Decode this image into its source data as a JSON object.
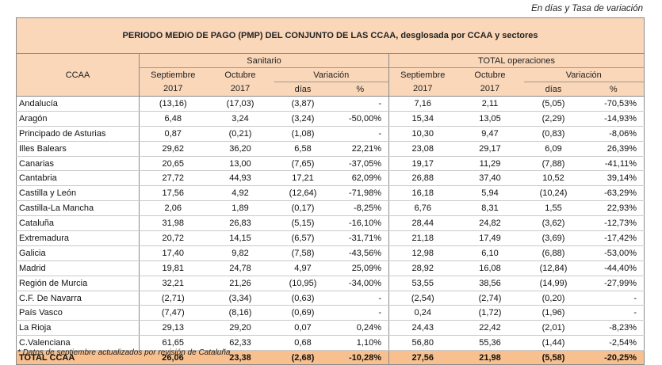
{
  "top_note": "En días y Tasa de variación",
  "title": "PERIODO MEDIO DE PAGO (PMP) DEL CONJUNTO DE LAS CCAA, desglosada por CCAA y sectores",
  "header": {
    "ccaa": "CCAA",
    "group_sanitario": "Sanitario",
    "group_total": "TOTAL operaciones",
    "sept_line1": "Septiembre",
    "sept_line2": "2017",
    "oct_line1": "Octubre",
    "oct_line2": "2017",
    "variacion": "Variación",
    "dias": "días",
    "pct": "%"
  },
  "rows": [
    {
      "name": "Andalucía",
      "s_sep": "(13,16)",
      "s_oct": "(17,03)",
      "s_dias": "(3,87)",
      "s_pct": "-",
      "t_sep": "7,16",
      "t_oct": "2,11",
      "t_dias": "(5,05)",
      "t_pct": "-70,53%"
    },
    {
      "name": "Aragón",
      "s_sep": "6,48",
      "s_oct": "3,24",
      "s_dias": "(3,24)",
      "s_pct": "-50,00%",
      "t_sep": "15,34",
      "t_oct": "13,05",
      "t_dias": "(2,29)",
      "t_pct": "-14,93%"
    },
    {
      "name": "Principado de Asturias",
      "s_sep": "0,87",
      "s_oct": "(0,21)",
      "s_dias": "(1,08)",
      "s_pct": "-",
      "t_sep": "10,30",
      "t_oct": "9,47",
      "t_dias": "(0,83)",
      "t_pct": "-8,06%"
    },
    {
      "name": "Illes Balears",
      "s_sep": "29,62",
      "s_oct": "36,20",
      "s_dias": "6,58",
      "s_pct": "22,21%",
      "t_sep": "23,08",
      "t_oct": "29,17",
      "t_dias": "6,09",
      "t_pct": "26,39%"
    },
    {
      "name": "Canarias",
      "s_sep": "20,65",
      "s_oct": "13,00",
      "s_dias": "(7,65)",
      "s_pct": "-37,05%",
      "t_sep": "19,17",
      "t_oct": "11,29",
      "t_dias": "(7,88)",
      "t_pct": "-41,11%"
    },
    {
      "name": "Cantabria",
      "s_sep": "27,72",
      "s_oct": "44,93",
      "s_dias": "17,21",
      "s_pct": "62,09%",
      "t_sep": "26,88",
      "t_oct": "37,40",
      "t_dias": "10,52",
      "t_pct": "39,14%"
    },
    {
      "name": "Castilla y León",
      "s_sep": "17,56",
      "s_oct": "4,92",
      "s_dias": "(12,64)",
      "s_pct": "-71,98%",
      "t_sep": "16,18",
      "t_oct": "5,94",
      "t_dias": "(10,24)",
      "t_pct": "-63,29%"
    },
    {
      "name": "Castilla-La Mancha",
      "s_sep": "2,06",
      "s_oct": "1,89",
      "s_dias": "(0,17)",
      "s_pct": "-8,25%",
      "t_sep": "6,76",
      "t_oct": "8,31",
      "t_dias": "1,55",
      "t_pct": "22,93%"
    },
    {
      "name": "Cataluña",
      "s_sep": "31,98",
      "s_oct": "26,83",
      "s_dias": "(5,15)",
      "s_pct": "-16,10%",
      "t_sep": "28,44",
      "t_oct": "24,82",
      "t_dias": "(3,62)",
      "t_pct": "-12,73%"
    },
    {
      "name": "Extremadura",
      "s_sep": "20,72",
      "s_oct": "14,15",
      "s_dias": "(6,57)",
      "s_pct": "-31,71%",
      "t_sep": "21,18",
      "t_oct": "17,49",
      "t_dias": "(3,69)",
      "t_pct": "-17,42%"
    },
    {
      "name": "Galicia",
      "s_sep": "17,40",
      "s_oct": "9,82",
      "s_dias": "(7,58)",
      "s_pct": "-43,56%",
      "t_sep": "12,98",
      "t_oct": "6,10",
      "t_dias": "(6,88)",
      "t_pct": "-53,00%"
    },
    {
      "name": "Madrid",
      "s_sep": "19,81",
      "s_oct": "24,78",
      "s_dias": "4,97",
      "s_pct": "25,09%",
      "t_sep": "28,92",
      "t_oct": "16,08",
      "t_dias": "(12,84)",
      "t_pct": "-44,40%"
    },
    {
      "name": "Región de Murcia",
      "s_sep": "32,21",
      "s_oct": "21,26",
      "s_dias": "(10,95)",
      "s_pct": "-34,00%",
      "t_sep": "53,55",
      "t_oct": "38,56",
      "t_dias": "(14,99)",
      "t_pct": "-27,99%"
    },
    {
      "name": "C.F. De Navarra",
      "s_sep": "(2,71)",
      "s_oct": "(3,34)",
      "s_dias": "(0,63)",
      "s_pct": "-",
      "t_sep": "(2,54)",
      "t_oct": "(2,74)",
      "t_dias": "(0,20)",
      "t_pct": "-"
    },
    {
      "name": "País Vasco",
      "s_sep": "(7,47)",
      "s_oct": "(8,16)",
      "s_dias": "(0,69)",
      "s_pct": "-",
      "t_sep": "0,24",
      "t_oct": "(1,72)",
      "t_dias": "(1,96)",
      "t_pct": "-"
    },
    {
      "name": "La Rioja",
      "s_sep": "29,13",
      "s_oct": "29,20",
      "s_dias": "0,07",
      "s_pct": "0,24%",
      "t_sep": "24,43",
      "t_oct": "22,42",
      "t_dias": "(2,01)",
      "t_pct": "-8,23%"
    },
    {
      "name": "C.Valenciana",
      "s_sep": "61,65",
      "s_oct": "62,33",
      "s_dias": "0,68",
      "s_pct": "1,10%",
      "t_sep": "56,80",
      "t_oct": "55,36",
      "t_dias": "(1,44)",
      "t_pct": "-2,54%"
    }
  ],
  "total": {
    "name": "TOTAL CCAA",
    "s_sep": "26,06",
    "s_oct": "23,38",
    "s_dias": "(2,68)",
    "s_pct": "-10,28%",
    "t_sep": "27,56",
    "t_oct": "21,98",
    "t_dias": "(5,58)",
    "t_pct": "-20,25%"
  },
  "footnote": "* Datos de septiembre actualizados por revisión de Cataluña",
  "colors": {
    "header_bg": "#fad7b9",
    "total_bg": "#f8c08e"
  }
}
